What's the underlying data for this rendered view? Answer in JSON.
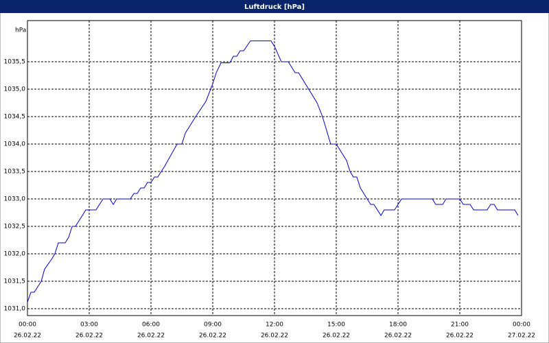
{
  "chart_data": {
    "type": "line",
    "title": "Luftdruck [hPa]",
    "y_label": "hPa",
    "x": [
      0,
      0.17,
      0.33,
      0.5,
      0.67,
      0.83,
      1.17,
      1.33,
      1.5,
      1.83,
      2,
      2.17,
      2.33,
      2.67,
      2.83,
      3.33,
      3.67,
      4,
      4.17,
      4.33,
      5,
      5.17,
      5.33,
      5.5,
      5.67,
      5.83,
      6,
      6.17,
      6.33,
      6.67,
      7.27,
      7.5,
      7.67,
      8.17,
      8.67,
      9,
      9.17,
      9.4,
      9.83,
      10,
      10.17,
      10.33,
      10.5,
      10.83,
      11.83,
      12,
      12.33,
      12.67,
      13,
      13.17,
      14.07,
      14.33,
      14.73,
      15,
      15.5,
      15.67,
      15.83,
      16,
      16.17,
      16.67,
      16.83,
      17.17,
      17.33,
      17.83,
      18.17,
      19.67,
      19.83,
      20.17,
      20.33,
      21,
      21.17,
      21.5,
      21.67,
      22.33,
      22.5,
      22.67,
      22.83,
      23.67,
      23.83
    ],
    "series": [
      {
        "name": "Luftdruck",
        "color": "#0000cc",
        "values": [
          1031.12,
          1031.3,
          1031.3,
          1031.4,
          1031.5,
          1031.72,
          1031.9,
          1032.0,
          1032.2,
          1032.2,
          1032.3,
          1032.5,
          1032.5,
          1032.7,
          1032.8,
          1032.8,
          1033.0,
          1033.0,
          1032.9,
          1033.0,
          1033.0,
          1033.1,
          1033.1,
          1033.2,
          1033.2,
          1033.3,
          1033.3,
          1033.4,
          1033.4,
          1033.6,
          1034.0,
          1034.0,
          1034.2,
          1034.5,
          1034.78,
          1035.1,
          1035.3,
          1035.48,
          1035.48,
          1035.6,
          1035.6,
          1035.7,
          1035.7,
          1035.88,
          1035.88,
          1035.78,
          1035.5,
          1035.5,
          1035.3,
          1035.3,
          1034.75,
          1034.5,
          1034.0,
          1034.0,
          1033.7,
          1033.5,
          1033.4,
          1033.4,
          1033.2,
          1032.9,
          1032.9,
          1032.7,
          1032.8,
          1032.8,
          1033.0,
          1033.0,
          1032.9,
          1032.9,
          1033.0,
          1033.0,
          1032.9,
          1032.9,
          1032.8,
          1032.8,
          1032.9,
          1032.9,
          1032.8,
          1032.8,
          1032.7
        ]
      }
    ],
    "xlim": [
      0,
      24
    ],
    "ylim": [
      1030.875,
      1036.25
    ],
    "xticks": [
      {
        "value": 0,
        "label": "00:00"
      },
      {
        "value": 3,
        "label": "03:00"
      },
      {
        "value": 6,
        "label": "06:00"
      },
      {
        "value": 9,
        "label": "09:00"
      },
      {
        "value": 12,
        "label": "12:00"
      },
      {
        "value": 15,
        "label": "15:00"
      },
      {
        "value": 18,
        "label": "18:00"
      },
      {
        "value": 21,
        "label": "21:00"
      },
      {
        "value": 24,
        "label": "00:00"
      }
    ],
    "xtick_dates": [
      "26.02.22",
      "26.02.22",
      "26.02.22",
      "26.02.22",
      "26.02.22",
      "26.02.22",
      "26.02.22",
      "26.02.22",
      "27.02.22"
    ],
    "yticks": [
      {
        "value": 1031,
        "label": "1031,0"
      },
      {
        "value": 1031.5,
        "label": "1031,5"
      },
      {
        "value": 1032,
        "label": "1032,0"
      },
      {
        "value": 1032.5,
        "label": "1032,5"
      },
      {
        "value": 1033,
        "label": "1033,0"
      },
      {
        "value": 1033.5,
        "label": "1033,5"
      },
      {
        "value": 1034,
        "label": "1034,0"
      },
      {
        "value": 1034.5,
        "label": "1034,5"
      },
      {
        "value": 1035,
        "label": "1035,0"
      },
      {
        "value": 1035.5,
        "label": "1035,5"
      }
    ],
    "grid": true
  }
}
